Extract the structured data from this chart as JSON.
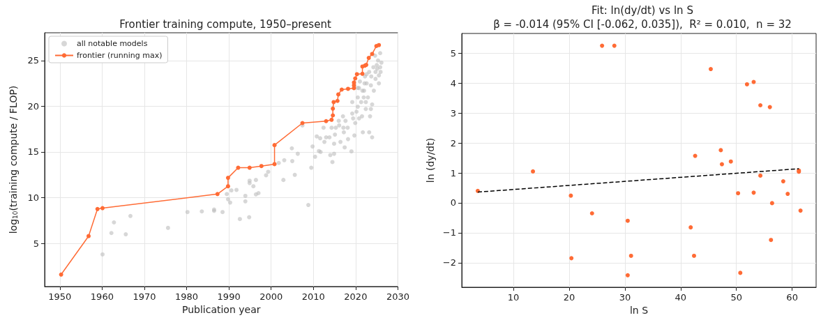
{
  "chart_data": [
    {
      "type": "scatter",
      "title": "Frontier training compute, 1950–present",
      "xlabel": "Publication year",
      "ylabel": "log$_{10}$(training compute / FLOP)",
      "xlim": [
        1946.4,
        2030
      ],
      "xticks": [
        1950,
        1960,
        1970,
        1980,
        1990,
        2000,
        2010,
        2020,
        2030
      ],
      "ylim": [
        0.29,
        28.03
      ],
      "yticks": [
        5,
        10,
        15,
        20,
        25
      ],
      "grid": true,
      "legend": "top left",
      "series": [
        {
          "name": "all notable models",
          "color": "#bdbdbd",
          "marker": "circle",
          "x": [
            1960.1,
            1962.2,
            1962.8,
            1965.6,
            1966.7,
            1975.6,
            1980.2,
            1983.6,
            1986.5,
            1986.5,
            1988.5,
            1989.5,
            1989.8,
            1990.3,
            1990.6,
            1991.8,
            1992.6,
            1993.9,
            1993.9,
            1994.8,
            1994.9,
            1994.9,
            1995.8,
            1996.4,
            1996.4,
            1997.0,
            1998.8,
            1999.3,
            2001.8,
            2003.1,
            2002.9,
            2004.9,
            2005.0,
            2005.6,
            2006.3,
            2007.4,
            2008.8,
            2009.5,
            2009.8,
            2010.4,
            2010.8,
            2011.6,
            2011.7,
            2012.4,
            2012.6,
            2013.8,
            2014.0,
            2014.5,
            2014.9,
            2015.3,
            2015.1,
            2014.9,
            2016.1,
            2016.4,
            2017.0,
            2017.2,
            2017.4,
            2017.6,
            2018.1,
            2019.0,
            2019.2,
            2019.2,
            2019.7,
            2019.9,
            2020.2,
            2020.5,
            2020.8,
            2021.0,
            2021.3,
            2021.5,
            2021.7,
            2022.0,
            2022.2,
            2022.4,
            2022.6,
            2022.9,
            2023.2,
            2023.2,
            2023.4,
            2023.6,
            2023.7,
            2023.9,
            2023.9,
            2024.2,
            2024.3,
            2024.6,
            2024.7,
            2025.0,
            2025.3,
            2025.5,
            2025.8,
            2026.1,
            2025.8,
            2025.9,
            2025.5,
            2023.6,
            2022.6,
            2021.6,
            2021.9,
            2020.5,
            2020.8,
            2019.4,
            2018.2,
            2017.1,
            2016.0,
            2014.3,
            2013.0,
            2011.3,
            2020.5,
            2022.1,
            2022.4,
            2024.7,
            2025.1
          ],
          "values": [
            3.8,
            6.14,
            7.3,
            6.0,
            8.0,
            6.7,
            8.43,
            8.5,
            8.7,
            8.56,
            8.43,
            10.4,
            9.83,
            9.47,
            10.8,
            10.85,
            7.67,
            10.2,
            9.6,
            7.87,
            11.86,
            11.6,
            11.25,
            11.94,
            10.36,
            10.5,
            12.45,
            12.83,
            13.8,
            14.1,
            11.94,
            15.4,
            14.0,
            12.5,
            14.8,
            17.9,
            9.2,
            13.28,
            15.6,
            14.48,
            16.7,
            16.5,
            15.0,
            17.65,
            16.1,
            16.6,
            14.66,
            13.9,
            14.8,
            17.65,
            16.9,
            15.9,
            17.9,
            16.1,
            18.9,
            17.15,
            15.5,
            18.4,
            17.65,
            15.06,
            19.2,
            20.45,
            16.8,
            18.16,
            19.4,
            20.96,
            21.98,
            22.7,
            20.45,
            18.9,
            17.15,
            21.7,
            23.25,
            19.7,
            22.5,
            20.96,
            23.75,
            17.15,
            18.9,
            22.28,
            23.25,
            16.6,
            20.2,
            24.26,
            21.7,
            25.53,
            22.99,
            24.5,
            25.0,
            22.5,
            24.26,
            24.77,
            25.8,
            23.75,
            23.37,
            19.7,
            23.5,
            21.7,
            20.96,
            19.94,
            18.67,
            18.67,
            16.4,
            17.65,
            18.4,
            17.65,
            16.6,
            15.1,
            22.0,
            22.5,
            20.45,
            23.75,
            24.1
          ]
        },
        {
          "name": "frontier (running max)",
          "type": "line",
          "color": "#ff6b35",
          "marker": "circle",
          "line_style": "solid",
          "x": [
            1950.3,
            1956.8,
            1958.9,
            1960.1,
            1987.3,
            1989.8,
            1989.8,
            1992.2,
            1994.9,
            1997.7,
            2000.8,
            2000.8,
            2007.4,
            2013.0,
            2014.3,
            2014.6,
            2014.6,
            2014.8,
            2015.7,
            2015.9,
            2016.7,
            2018.2,
            2019.6,
            2019.6,
            2019.6,
            2019.9,
            2020.3,
            2021.6,
            2021.6,
            2022.2,
            2022.5,
            2023.1,
            2023.9,
            2024.9,
            2025.5
          ],
          "values": [
            1.6,
            5.8,
            8.76,
            8.86,
            10.4,
            11.25,
            12.17,
            13.28,
            13.28,
            13.46,
            13.67,
            15.75,
            18.16,
            18.37,
            18.52,
            19.0,
            19.74,
            20.45,
            20.58,
            21.29,
            21.82,
            21.9,
            21.98,
            22.28,
            22.59,
            23.04,
            23.5,
            23.55,
            24.34,
            24.44,
            24.52,
            25.28,
            25.71,
            26.58,
            26.68
          ]
        }
      ]
    },
    {
      "type": "scatter",
      "title": "Fit: ln(dy/dt) vs ln S",
      "subtitle": "β = -0.014 (95% CI [-0.062, 0.035]),  R² = 0.010,  n = 32",
      "xlabel": "ln S",
      "ylabel": "ln (dy/dt)",
      "xlim": [
        0.73,
        64.3
      ],
      "xticks": [
        10,
        20,
        30,
        40,
        50,
        60
      ],
      "ylim": [
        -2.82,
        5.66
      ],
      "yticks": [
        -2,
        -1,
        0,
        1,
        2,
        3,
        4,
        5
      ],
      "grid": true,
      "series": [
        {
          "color": "#ff6b35",
          "marker": "circle",
          "x": [
            3.6,
            13.5,
            20.3,
            20.4,
            24.1,
            25.9,
            28.1,
            30.5,
            30.5,
            31.1,
            41.8,
            42.4,
            42.6,
            45.4,
            47.2,
            47.4,
            49.0,
            50.3,
            50.7,
            51.9,
            53.1,
            53.1,
            54.3,
            54.3,
            56.0,
            56.2,
            56.4,
            58.4,
            59.2,
            61.2,
            61.2,
            61.5
          ],
          "values": [
            0.4,
            1.05,
            0.24,
            -1.85,
            -0.35,
            5.25,
            5.25,
            -0.6,
            -2.42,
            -1.77,
            -0.82,
            -1.77,
            1.57,
            4.47,
            1.76,
            1.29,
            1.38,
            0.32,
            -2.34,
            3.96,
            4.04,
            0.34,
            3.26,
            0.91,
            3.2,
            -1.24,
            -0.01,
            0.72,
            0.3,
            1.08,
            1.04,
            -0.26
          ]
        },
        {
          "type": "line",
          "color": "#000000",
          "marker": "none",
          "line_style": "dashed",
          "x": [
            3.6,
            61.2
          ],
          "values": [
            0.36,
            1.14
          ]
        }
      ]
    }
  ]
}
